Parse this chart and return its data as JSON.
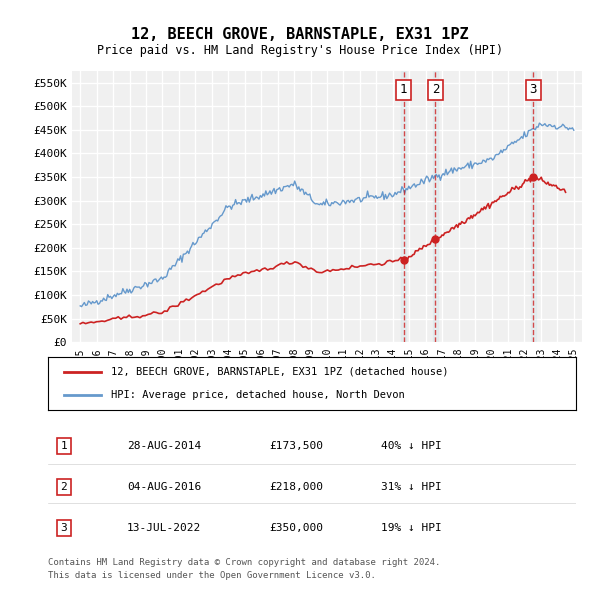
{
  "title": "12, BEECH GROVE, BARNSTAPLE, EX31 1PZ",
  "subtitle": "Price paid vs. HM Land Registry's House Price Index (HPI)",
  "background_color": "#ffffff",
  "plot_bg_color": "#f0f0f0",
  "grid_color": "#ffffff",
  "hpi_color": "#6699cc",
  "price_color": "#cc2222",
  "ylim": [
    0,
    575000
  ],
  "yticks": [
    0,
    50000,
    100000,
    150000,
    200000,
    250000,
    300000,
    350000,
    400000,
    450000,
    500000,
    550000
  ],
  "ytick_labels": [
    "£0",
    "£50K",
    "£100K",
    "£150K",
    "£200K",
    "£250K",
    "£300K",
    "£350K",
    "£400K",
    "£450K",
    "£500K",
    "£550K"
  ],
  "sales": [
    {
      "label": "1",
      "date_str": "28-AUG-2014",
      "date_x": 2014.65,
      "price": 173500,
      "hpi_pct": "40% ↓ HPI"
    },
    {
      "label": "2",
      "date_str": "04-AUG-2016",
      "date_x": 2016.59,
      "price": 218000,
      "hpi_pct": "31% ↓ HPI"
    },
    {
      "label": "3",
      "date_str": "13-JUL-2022",
      "date_x": 2022.53,
      "price": 350000,
      "hpi_pct": "19% ↓ HPI"
    }
  ],
  "legend_entries": [
    "12, BEECH GROVE, BARNSTAPLE, EX31 1PZ (detached house)",
    "HPI: Average price, detached house, North Devon"
  ],
  "footer_lines": [
    "Contains HM Land Registry data © Crown copyright and database right 2024.",
    "This data is licensed under the Open Government Licence v3.0."
  ],
  "xmin": 1994.5,
  "xmax": 2025.5
}
